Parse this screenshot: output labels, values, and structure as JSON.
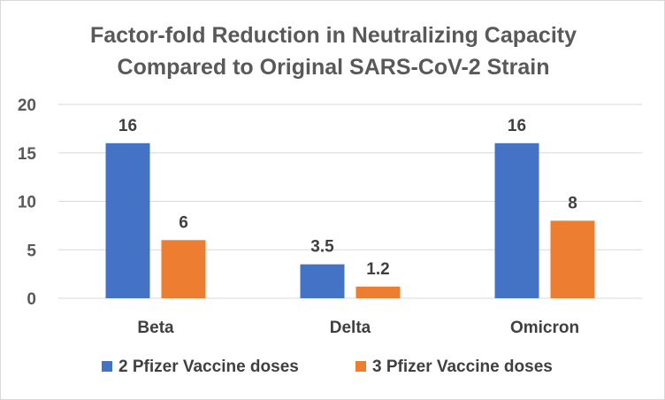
{
  "chart_data": {
    "type": "bar",
    "title": "Factor-fold Reduction in Neutralizing Capacity Compared to Original SARS-CoV-2 Strain",
    "title_lines": [
      "Factor-fold Reduction in Neutralizing Capacity",
      "Compared to Original SARS-CoV-2 Strain"
    ],
    "categories": [
      "Beta",
      "Delta",
      "Omicron"
    ],
    "series": [
      {
        "name": "2 Pfizer Vaccine doses",
        "values": [
          16,
          3.5,
          16
        ],
        "labels": [
          "16",
          "3.5",
          "16"
        ],
        "color": "#4472c4"
      },
      {
        "name": "3 Pfizer Vaccine doses",
        "values": [
          6,
          1.2,
          8
        ],
        "labels": [
          "6",
          "1.2",
          "8"
        ],
        "color": "#ed7d31"
      }
    ],
    "ylim": [
      0,
      20
    ],
    "yticks": [
      0,
      5,
      10,
      15,
      20
    ],
    "xlabel": "",
    "ylabel": "",
    "grid": true,
    "legend_position": "bottom"
  }
}
